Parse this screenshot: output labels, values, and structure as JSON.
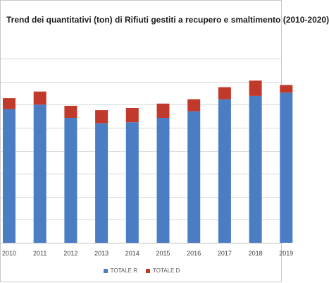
{
  "chart_data": {
    "type": "bar",
    "stacked": true,
    "title": "Trend dei quantitativi (ton) di Rifiuti gestiti a recupero e smaltimento (2010-2020)",
    "xlabel": "",
    "ylabel": "",
    "categories": [
      "2010",
      "2011",
      "2012",
      "2013",
      "2014",
      "2015",
      "2016",
      "2017",
      "2018",
      "2019"
    ],
    "series": [
      {
        "name": "TOTALE R",
        "color": "#4a7dc4",
        "values": [
          122,
          126,
          114,
          109,
          110,
          114,
          120,
          131,
          134,
          137
        ]
      },
      {
        "name": "TOTALE D",
        "color": "#c0392b",
        "values": [
          10,
          12,
          11,
          12,
          13,
          13,
          11,
          11,
          14,
          7
        ]
      }
    ],
    "ylim": [
      0,
      190
    ],
    "gridlines": [
      0,
      21,
      42,
      63,
      84,
      105,
      126,
      147,
      168
    ],
    "grid": true,
    "legend": "bottom"
  }
}
